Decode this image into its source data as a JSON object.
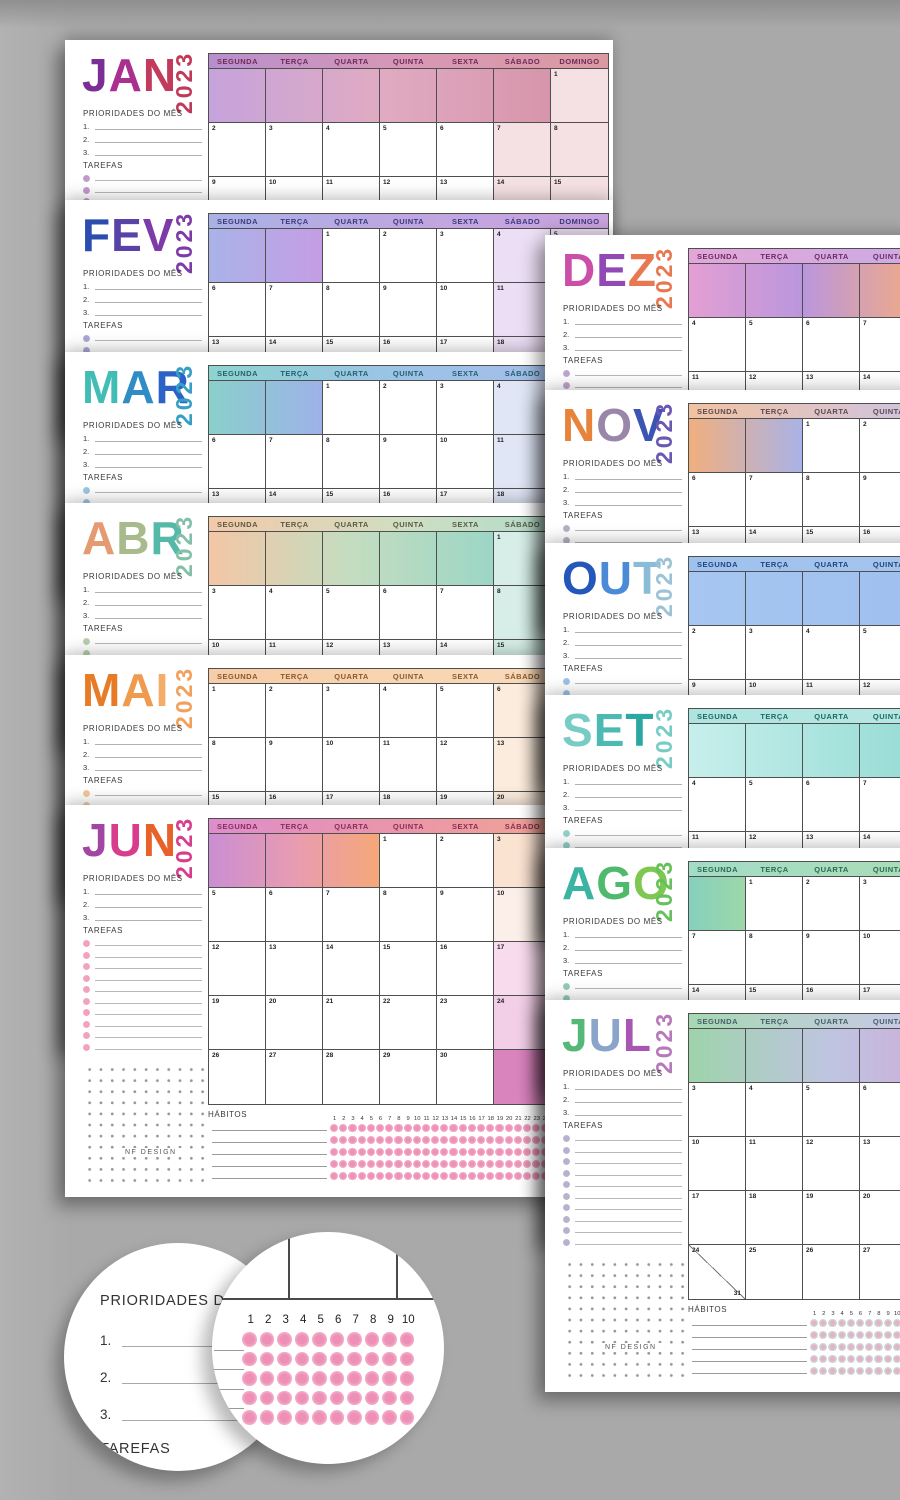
{
  "background_color": "#a9a9a9",
  "shared": {
    "year": "2023",
    "weekdays": [
      "SEGUNDA",
      "TERÇA",
      "QUARTA",
      "QUINTA",
      "SEXTA",
      "SÁBADO",
      "DOMINGO"
    ],
    "priorities_label": "PRIORIDADES DO MÊS",
    "priority_items": [
      "1.",
      "2.",
      "3."
    ],
    "tasks_label": "TAREFAS",
    "habits_label": "HÁBITOS",
    "brand": "NF DESIGN",
    "habit_days": 31,
    "grid_line_color": "#4f4f4f"
  },
  "months": [
    {
      "id": "jan",
      "label": "JAN",
      "first_day": 6,
      "days": 31,
      "title_colors": [
        "#7b2f96",
        "#a9308f",
        "#c23a5c"
      ],
      "year_color": "#c03a58",
      "header_text": "#6f2a58",
      "header_gradient": [
        "#b78fcd",
        "#d898b6",
        "#db9aa2"
      ],
      "lead_gradient": [
        "#c6a3dc",
        "#e0abc2",
        "#d795ab"
      ],
      "weekend_tint": "#f5e1e3",
      "bullet_color": "#c09ace"
    },
    {
      "id": "fev",
      "label": "FEV",
      "first_day": 2,
      "days": 28,
      "title_colors": [
        "#2c4cae",
        "#5a43a8",
        "#7c3ba6"
      ],
      "year_color": "#7c3ba6",
      "header_text": "#3c3a80",
      "header_gradient": [
        "#a9b2e4",
        "#bfa6e0",
        "#cba4de"
      ],
      "lead_gradient": [
        "#a9b3e8",
        "#c59de4"
      ],
      "weekend_tint": "#ecdef4",
      "bullet_color": "#a9a6da"
    },
    {
      "id": "mar",
      "label": "MAR",
      "first_day": 2,
      "days": 31,
      "title_colors": [
        "#41bdb5",
        "#2f8cc4",
        "#2b62c6"
      ],
      "year_color": "#35a0c4",
      "header_text": "#26606e",
      "header_gradient": [
        "#8dd4cf",
        "#9cc2e8",
        "#a6bce9"
      ],
      "lead_gradient": [
        "#8ad0cb",
        "#9db2e8"
      ],
      "weekend_tint": "#e0e6f6",
      "bullet_color": "#9cc6e2"
    },
    {
      "id": "abr",
      "label": "ABR",
      "first_day": 5,
      "days": 30,
      "title_colors": [
        "#e69a71",
        "#a9bb8d",
        "#54b9a9"
      ],
      "year_color": "#84c0a9",
      "header_text": "#5c5a46",
      "header_gradient": [
        "#f3c9a9",
        "#cfdfc2",
        "#a5dacd"
      ],
      "lead_gradient": [
        "#f3c6a6",
        "#c4ddc0",
        "#9cd6c6"
      ],
      "weekend_tint": "#d6eee7",
      "bullet_color": "#b5d0a9"
    },
    {
      "id": "mai",
      "label": "MAI",
      "first_day": 0,
      "days": 31,
      "title_colors": [
        "#e87c26",
        "#f09a4e",
        "#f3ad68"
      ],
      "year_color": "#f0a25c",
      "header_text": "#8a5a2e",
      "header_gradient": [
        "#f6cda6",
        "#f8d5b2",
        "#f9dcbe"
      ],
      "lead_gradient": [],
      "weekend_tint": "#fcecdd",
      "bullet_color": "#f3c69c"
    },
    {
      "id": "jun",
      "label": "JUN",
      "first_day": 3,
      "days": 30,
      "title_colors": [
        "#a346a1",
        "#d83d8d",
        "#e8602a"
      ],
      "year_color": "#d83d8d",
      "header_text": "#8a2c5c",
      "header_gradient": [
        "#dd8ecb",
        "#eb96a8",
        "#f2a98c"
      ],
      "lead_gradient": [
        "#ca8ed2",
        "#e89cb2",
        "#f5a877"
      ],
      "weekend_tint": "#f8e2ef",
      "sat_tints": [
        "#fbe3d2",
        "#fcefe9",
        "#f8dcee",
        "#f3cfe7",
        "#da84be"
      ],
      "bullet_color": "#f2a2be",
      "habit_dot_inner": "#ee91b6",
      "habit_dot_outer": "#f3abc7"
    },
    {
      "id": "jul",
      "label": "JUL",
      "first_day": 5,
      "days": 31,
      "title_colors": [
        "#56b878",
        "#8aa4ca",
        "#a757b2"
      ],
      "year_color": "#b879ba",
      "header_text": "#46606a",
      "header_gradient": [
        "#a6d8b2",
        "#c6cbe3",
        "#d9aadd"
      ],
      "lead_gradient": [
        "#9ed3ab",
        "#bfc5e1",
        "#d3a3d7"
      ],
      "weekend_tint": "#eee0f0",
      "bullet_color": "#b8b2cf",
      "habit_dot_inner": "#e3b2ca",
      "habit_dot_outer": "#cadfd4"
    },
    {
      "id": "ago",
      "label": "AGO",
      "first_day": 1,
      "days": 31,
      "title_colors": [
        "#3cb4a3",
        "#4fb96d",
        "#7cc850"
      ],
      "year_color": "#66c05c",
      "header_text": "#2c6a50",
      "header_gradient": [
        "#a3dcc7",
        "#a9dcb8",
        "#aedcab"
      ],
      "lead_gradient": [
        "#86d0bd",
        "#9dd8a9"
      ],
      "weekend_tint": "#e3f2e6",
      "bullet_color": "#92cdb6"
    },
    {
      "id": "set",
      "label": "SET",
      "first_day": 4,
      "days": 30,
      "title_colors": [
        "#79ccc5",
        "#4cbab2",
        "#2aa8a1"
      ],
      "year_color": "#79ccc5",
      "header_text": "#1e6a66",
      "header_gradient": [
        "#aee4e0",
        "#b6e7e2",
        "#bfeae5"
      ],
      "lead_gradient": [
        "#c7efec",
        "#97dcd5"
      ],
      "weekend_tint": "#dff4f1",
      "bullet_color": "#8fd2cc"
    },
    {
      "id": "out",
      "label": "OUT",
      "first_day": 6,
      "days": 31,
      "title_colors": [
        "#2457ba",
        "#4a8ad6",
        "#8abcd8"
      ],
      "year_color": "#9cc2d6",
      "header_text": "#24457c",
      "header_gradient": [
        "#9ec2ee",
        "#a3c4ef",
        "#a8c6f0"
      ],
      "lead_gradient": [
        "#a6c7f1",
        "#9cbcee"
      ],
      "weekend_tint": "#e2eaf8",
      "bullet_color": "#9cc2ea"
    },
    {
      "id": "nov",
      "label": "NOV",
      "first_day": 2,
      "days": 30,
      "title_colors": [
        "#e8833c",
        "#9a86a8",
        "#3c55b2"
      ],
      "year_color": "#6a58b2",
      "header_text": "#5c4a52",
      "header_gradient": [
        "#f2c3a2",
        "#d3c4da",
        "#c2c8ee"
      ],
      "lead_gradient": [
        "#f1af7e",
        "#a9b3e8"
      ],
      "weekend_tint": "#eae6f2",
      "bullet_color": "#b2b2c6"
    },
    {
      "id": "dez",
      "label": "DEZ",
      "first_day": 4,
      "days": 31,
      "title_colors": [
        "#cb4fa9",
        "#9049b5",
        "#e87851"
      ],
      "year_color": "#e87851",
      "header_text": "#6e2a64",
      "header_gradient": [
        "#e2a7d8",
        "#cfaae4",
        "#f0bb98"
      ],
      "lead_gradient": [
        "#e39fd3",
        "#ba96dd",
        "#f2ab84"
      ],
      "weekend_tint": "#f6e2ee",
      "bullet_color": "#bfa3d2"
    }
  ],
  "detail_circles": {
    "left": {
      "heading": "PRIORIDADES DO MÊS",
      "items": [
        "1.",
        "2.",
        "3."
      ],
      "tasks_label": "TAREFAS",
      "bullet_color": "#f2a6c2"
    },
    "right": {
      "numbers": [
        "1",
        "2",
        "3",
        "4",
        "5",
        "6",
        "7",
        "8",
        "9",
        "10"
      ],
      "dot_inner": "#ee8fb6",
      "dot_outer": "#f4b0ca"
    }
  }
}
